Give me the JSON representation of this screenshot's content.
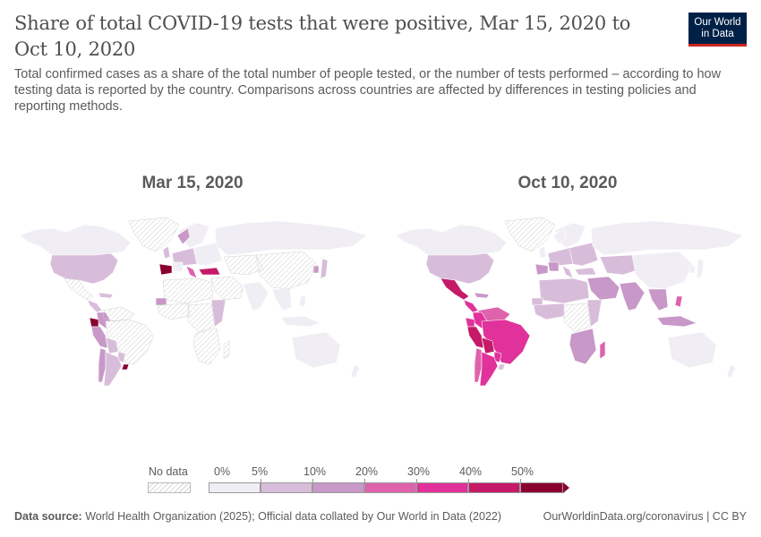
{
  "header": {
    "title": "Share of total COVID-19 tests that were positive, Mar 15, 2020 to Oct 10, 2020",
    "subtitle": "Total confirmed cases as a share of the total number of people tested, or the number of tests performed – according to how testing data is reported by the country. Comparisons across countries are affected by differences in testing policies and reporting methods.",
    "logo_line1": "Our World",
    "logo_line2": "in Data"
  },
  "maps": [
    {
      "label": "Mar 15, 2020"
    },
    {
      "label": "Oct 10, 2020"
    }
  ],
  "legend": {
    "no_data_label": "No data",
    "ticks": [
      "0%",
      "5%",
      "10%",
      "20%",
      "30%",
      "40%",
      "50%"
    ],
    "colors": [
      "#f0eef4",
      "#d8bdda",
      "#c898c8",
      "#de62ac",
      "#e0329a",
      "#c51a68",
      "#8a0030"
    ]
  },
  "footer": {
    "source_label": "Data source:",
    "source_text": "World Health Organization (2025); Official data collated by Our World in Data (2022)",
    "right_text": "OurWorldinData.org/coronavirus | CC BY"
  },
  "colors": {
    "no_data_hatch": "#d6d6d6",
    "low": "#f0eef4",
    "brand_navy": "#002147",
    "brand_red": "#ce261e"
  },
  "regions": {
    "mar": {
      "north_america": 0,
      "usa": 1,
      "greenland": -1,
      "mexico": -1,
      "central_america": 1,
      "caribbean": 1,
      "south_america_north": -1,
      "colombia": 2,
      "ecuador": 6,
      "peru": 2,
      "brazil": -1,
      "bolivia": 1,
      "chile": 2,
      "argentina": 1,
      "uruguay": 6,
      "paraguay": 1,
      "europe_west": 1,
      "spain": 6,
      "france": 0,
      "uk": 1,
      "scandinavia": 0,
      "norway": 2,
      "italy": 3,
      "eastern_europe": 0,
      "turkey": 5,
      "russia": 0,
      "middle_east": -1,
      "north_africa": -1,
      "west_africa": -1,
      "central_africa": -1,
      "east_africa": 1,
      "southern_africa": -1,
      "madagascar": -1,
      "senegal": 2,
      "central_asia": -1,
      "india": 0,
      "china": -1,
      "southeast_asia": 0,
      "japan": 1,
      "korea": 2,
      "philippines": 0,
      "indonesia": 0,
      "australia": 0,
      "new_zealand": 0
    },
    "oct": {
      "north_america": 0,
      "usa": 1,
      "greenland": -1,
      "mexico": 5,
      "central_america": 4,
      "caribbean": 2,
      "south_america_north": 3,
      "colombia": 4,
      "ecuador": 4,
      "peru": 5,
      "brazil": 4,
      "bolivia": 5,
      "chile": 3,
      "argentina": 4,
      "uruguay": 1,
      "paraguay": 4,
      "europe_west": 1,
      "spain": 2,
      "france": 2,
      "uk": 0,
      "scandinavia": 0,
      "norway": 0,
      "italy": 1,
      "eastern_europe": 1,
      "turkey": 1,
      "russia": 0,
      "middle_east": 2,
      "north_africa": 1,
      "west_africa": 1,
      "central_africa": -1,
      "east_africa": 1,
      "southern_africa": 2,
      "madagascar": 3,
      "senegal": 1,
      "central_asia": 1,
      "india": 2,
      "china": 0,
      "southeast_asia": 2,
      "japan": 0,
      "korea": 0,
      "philippines": 3,
      "indonesia": 2,
      "australia": 0,
      "new_zealand": 0
    }
  }
}
